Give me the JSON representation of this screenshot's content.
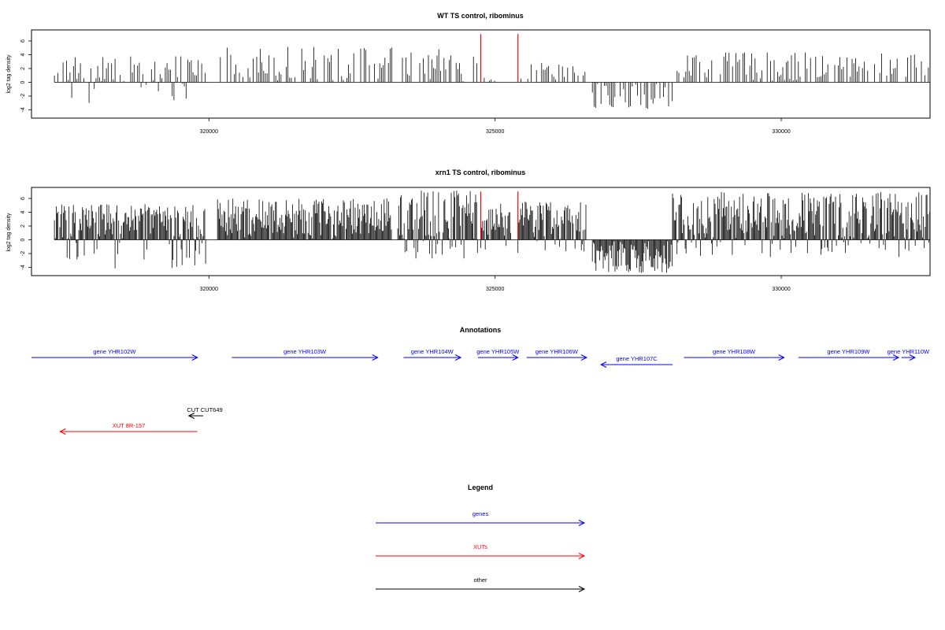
{
  "chart_data": [
    {
      "type": "bar",
      "title": "WT TS control, ribominus",
      "ylabel": "log2 tag density",
      "xlabel": "",
      "xlim": [
        316900,
        332600
      ],
      "ylim": [
        -5.2,
        7.6
      ],
      "x_ticks": [
        320000,
        325000,
        330000
      ],
      "y_ticks": [
        6,
        4,
        2,
        0,
        -2,
        -4
      ],
      "markers": [
        324750,
        325400
      ],
      "marker_color": "#ff0000",
      "grid": false,
      "segments": [
        {
          "x0": 317300,
          "x1": 319950,
          "min": -3.0,
          "max": 4.0
        },
        {
          "x0": 320200,
          "x1": 323200,
          "min": 0.0,
          "max": 5.2
        },
        {
          "x0": 323350,
          "x1": 324700,
          "min": 0.0,
          "max": 4.8
        },
        {
          "x0": 324750,
          "x1": 325050,
          "min": 0.0,
          "max": 1.2
        },
        {
          "x0": 325450,
          "x1": 326600,
          "min": 0.0,
          "max": 3.0
        },
        {
          "x0": 326700,
          "x1": 328100,
          "min": -4.0,
          "max": 0.0
        },
        {
          "x0": 328150,
          "x1": 332600,
          "min": 0.0,
          "max": 4.3
        }
      ]
    },
    {
      "type": "bar",
      "title": "xrn1 TS control, ribominus",
      "ylabel": "log2 tag density",
      "xlabel": "",
      "xlim": [
        316900,
        332600
      ],
      "ylim": [
        -5.2,
        7.6
      ],
      "x_ticks": [
        320000,
        325000,
        330000
      ],
      "y_ticks": [
        6,
        4,
        2,
        0,
        -2,
        -4
      ],
      "markers": [
        324750,
        325400
      ],
      "marker_color": "#ff0000",
      "grid": false,
      "segments": [
        {
          "x0": 317300,
          "x1": 319950,
          "min": -4.2,
          "max": 5.2
        },
        {
          "x0": 320150,
          "x1": 323200,
          "min": 0.0,
          "max": 6.0
        },
        {
          "x0": 323300,
          "x1": 324700,
          "min": -3.0,
          "max": 7.2
        },
        {
          "x0": 324750,
          "x1": 325300,
          "min": -1.5,
          "max": 5.5
        },
        {
          "x0": 325400,
          "x1": 326600,
          "min": -2.0,
          "max": 6.0
        },
        {
          "x0": 326700,
          "x1": 328100,
          "min": -4.8,
          "max": 0.0
        },
        {
          "x0": 328100,
          "x1": 332600,
          "min": -2.5,
          "max": 7.0
        }
      ]
    }
  ],
  "annotations": {
    "title": "Annotations",
    "features": [
      {
        "label": "gene YHR102W",
        "type": "gene",
        "x_start": 316900,
        "x_end": 319800,
        "direction": "forward",
        "row": 0
      },
      {
        "label": "gene YHR103W",
        "type": "gene",
        "x_start": 320400,
        "x_end": 322950,
        "direction": "forward",
        "row": 0
      },
      {
        "label": "gene YHR104W",
        "type": "gene",
        "x_start": 323400,
        "x_end": 324400,
        "direction": "forward",
        "row": 0
      },
      {
        "label": "gene YHR105W",
        "type": "gene",
        "x_start": 324700,
        "x_end": 325400,
        "direction": "forward",
        "row": 0
      },
      {
        "label": "gene YHR106W",
        "type": "gene",
        "x_start": 325550,
        "x_end": 326600,
        "direction": "forward",
        "row": 0
      },
      {
        "label": "gene YHR107C",
        "type": "gene",
        "x_start": 326850,
        "x_end": 328100,
        "direction": "reverse",
        "row": 1
      },
      {
        "label": "gene YHR108W",
        "type": "gene",
        "x_start": 328300,
        "x_end": 330050,
        "direction": "forward",
        "row": 0
      },
      {
        "label": "gene YHR109W",
        "type": "gene",
        "x_start": 330300,
        "x_end": 332050,
        "direction": "forward",
        "row": 0
      },
      {
        "label": "gene YHR110W",
        "type": "gene",
        "x_start": 332100,
        "x_end": 332800,
        "direction": "forward",
        "row": 0
      },
      {
        "label": "CUT CUT649",
        "type": "other",
        "x_start": 319650,
        "x_end": 319900,
        "direction": "reverse",
        "row": 2
      },
      {
        "label": "XUT 8R-157",
        "type": "xut",
        "x_start": 317400,
        "x_end": 319800,
        "direction": "reverse",
        "row": 3
      }
    ]
  },
  "legend": {
    "title": "Legend",
    "items": [
      {
        "label": "genes",
        "type": "gene"
      },
      {
        "label": "XUTs",
        "type": "xut"
      },
      {
        "label": "other",
        "type": "other"
      }
    ]
  },
  "colors": {
    "gene": "#0000ff",
    "xut": "#ff0000",
    "other": "#000000",
    "marker": "#ff0000"
  }
}
